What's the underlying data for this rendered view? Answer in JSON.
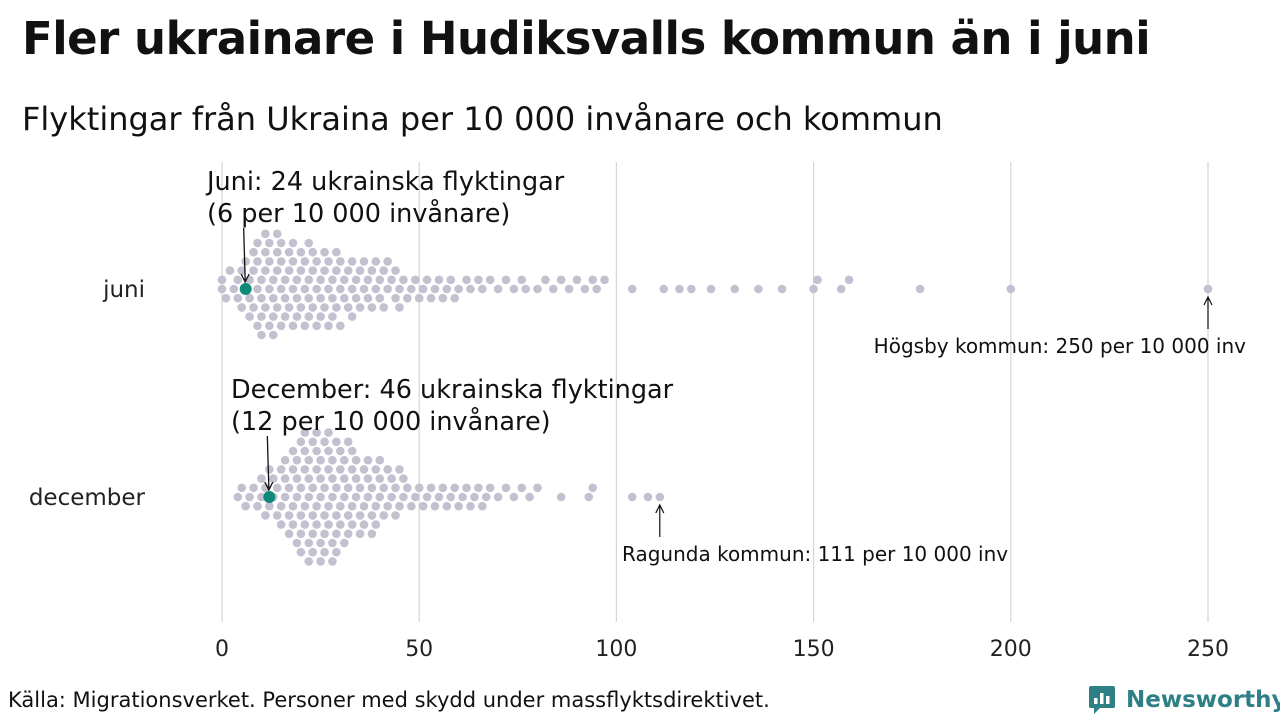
{
  "header": {
    "title": "Fler ukrainare i Hudiksvalls kommun än i juni",
    "subtitle": "Flyktingar från Ukraina per 10 000 invånare och kommun"
  },
  "footer": {
    "source": "Källa: Migrationsverket. Personer med skydd under massflyktsdirektivet.",
    "brand": "Newsworthy"
  },
  "colors": {
    "dot": "#c4c0d0",
    "highlight": "#0d8a78",
    "grid": "#d6d6d6",
    "brand": "#2e7f86"
  },
  "chart_data": {
    "type": "scatter",
    "variant": "beeswarm",
    "xlim": [
      0,
      250
    ],
    "xticks": [
      0,
      50,
      100,
      150,
      200,
      250
    ],
    "xtick_labels": [
      "0",
      "50",
      "100",
      "150",
      "200",
      "250"
    ],
    "categories": [
      "juni",
      "december"
    ],
    "series": [
      {
        "name": "juni",
        "highlight": {
          "value": 6,
          "line1": "Juni: 24 ukrainska flyktingar",
          "line2": "(6 per 10 000 invånare)"
        },
        "max_annotation": {
          "value": 250,
          "text": "Högsby kommun: 250 per 10 000 inv"
        },
        "values": [
          0,
          0,
          1,
          2,
          3,
          4,
          4,
          5,
          5,
          6,
          6,
          7,
          7,
          7,
          8,
          8,
          8,
          9,
          9,
          9,
          9,
          10,
          10,
          10,
          10,
          11,
          11,
          11,
          11,
          12,
          12,
          12,
          12,
          13,
          13,
          13,
          13,
          14,
          14,
          14,
          14,
          15,
          15,
          15,
          15,
          16,
          16,
          16,
          17,
          17,
          17,
          18,
          18,
          18,
          18,
          19,
          19,
          19,
          20,
          20,
          20,
          21,
          21,
          21,
          22,
          22,
          22,
          22,
          23,
          23,
          23,
          24,
          24,
          24,
          25,
          25,
          25,
          26,
          26,
          26,
          27,
          27,
          27,
          28,
          28,
          28,
          29,
          29,
          29,
          30,
          30,
          30,
          31,
          31,
          32,
          32,
          33,
          33,
          33,
          34,
          34,
          35,
          35,
          36,
          36,
          37,
          37,
          38,
          38,
          39,
          39,
          40,
          40,
          41,
          41,
          42,
          42,
          43,
          44,
          44,
          45,
          45,
          46,
          47,
          48,
          49,
          50,
          51,
          52,
          53,
          54,
          55,
          56,
          57,
          58,
          59,
          60,
          62,
          63,
          65,
          66,
          68,
          70,
          72,
          74,
          76,
          77,
          80,
          82,
          84,
          86,
          88,
          90,
          92,
          94,
          95,
          97,
          104,
          112,
          116,
          119,
          124,
          130,
          136,
          142,
          150,
          151,
          157,
          159,
          177,
          200,
          250
        ]
      },
      {
        "name": "december",
        "highlight": {
          "value": 12,
          "line1": "December: 46 ukrainska flyktingar",
          "line2": "(12 per 10 000 invånare)"
        },
        "max_annotation": {
          "value": 111,
          "text": "Ragunda kommun: 111 per 10 000 inv"
        },
        "values": [
          4,
          5,
          6,
          7,
          8,
          9,
          10,
          10,
          11,
          11,
          12,
          12,
          13,
          13,
          14,
          14,
          15,
          15,
          15,
          16,
          16,
          16,
          17,
          17,
          17,
          18,
          18,
          18,
          18,
          19,
          19,
          19,
          19,
          20,
          20,
          20,
          20,
          20,
          21,
          21,
          21,
          21,
          21,
          22,
          22,
          22,
          22,
          22,
          23,
          23,
          23,
          23,
          23,
          24,
          24,
          24,
          24,
          24,
          25,
          25,
          25,
          25,
          25,
          26,
          26,
          26,
          26,
          26,
          27,
          27,
          27,
          27,
          27,
          28,
          28,
          28,
          28,
          28,
          29,
          29,
          29,
          29,
          29,
          30,
          30,
          30,
          30,
          31,
          31,
          31,
          31,
          32,
          32,
          32,
          32,
          33,
          33,
          33,
          33,
          34,
          34,
          34,
          35,
          35,
          35,
          36,
          36,
          36,
          37,
          37,
          37,
          38,
          38,
          38,
          39,
          39,
          39,
          40,
          40,
          40,
          41,
          41,
          42,
          42,
          43,
          43,
          44,
          44,
          45,
          45,
          46,
          46,
          47,
          48,
          49,
          50,
          51,
          52,
          53,
          54,
          55,
          56,
          57,
          58,
          59,
          60,
          61,
          62,
          63,
          64,
          65,
          66,
          67,
          68,
          70,
          72,
          74,
          76,
          78,
          80,
          86,
          93,
          94,
          104,
          108,
          111
        ]
      }
    ]
  }
}
